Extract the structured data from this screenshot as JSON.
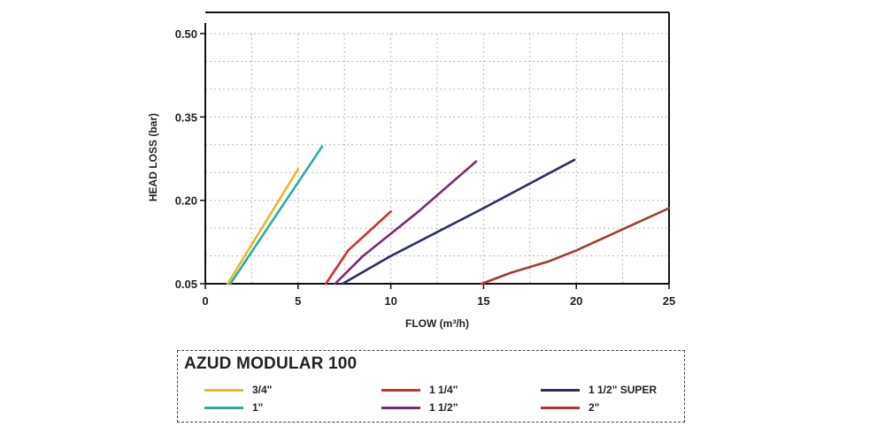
{
  "chart_data": {
    "type": "line",
    "title": "AZUD MODULAR 100",
    "xlabel": "FLOW (m³/h)",
    "ylabel": "HEAD LOSS (bar)",
    "xlim": [
      0,
      25
    ],
    "ylim": [
      0.05,
      0.5
    ],
    "xticks": [
      0,
      5,
      10,
      15,
      20,
      25
    ],
    "yticks": [
      0.05,
      0.2,
      0.35,
      0.5
    ],
    "ytick_labels": [
      "0.05",
      "0.20",
      "0.35",
      "0.50"
    ],
    "grid": true,
    "legend_position": "bottom",
    "series": [
      {
        "name": "3/4\"",
        "color": "#e8b92a",
        "points": [
          [
            1.2,
            0.05
          ],
          [
            5.0,
            0.256
          ]
        ]
      },
      {
        "name": "1\"",
        "color": "#2eaaa4",
        "points": [
          [
            1.35,
            0.05
          ],
          [
            6.3,
            0.297
          ]
        ]
      },
      {
        "name": "1 1/4\"",
        "color": "#d92a2f",
        "points": [
          [
            6.5,
            0.05
          ],
          [
            7.7,
            0.11
          ],
          [
            10.0,
            0.18
          ]
        ]
      },
      {
        "name": "1 1/2\"",
        "color": "#7a2d6e",
        "points": [
          [
            7.0,
            0.05
          ],
          [
            8.5,
            0.1
          ],
          [
            11.5,
            0.18
          ],
          [
            14.6,
            0.27
          ]
        ]
      },
      {
        "name": "1 1/2\" SUPER",
        "color": "#2a2f62",
        "points": [
          [
            7.4,
            0.05
          ],
          [
            10.0,
            0.1
          ],
          [
            15.0,
            0.186
          ],
          [
            19.9,
            0.273
          ]
        ]
      },
      {
        "name": "2\"",
        "color": "#a63a30",
        "points": [
          [
            14.9,
            0.05
          ],
          [
            16.5,
            0.07
          ],
          [
            18.5,
            0.09
          ],
          [
            20.0,
            0.11
          ],
          [
            25.0,
            0.186
          ]
        ]
      }
    ]
  }
}
